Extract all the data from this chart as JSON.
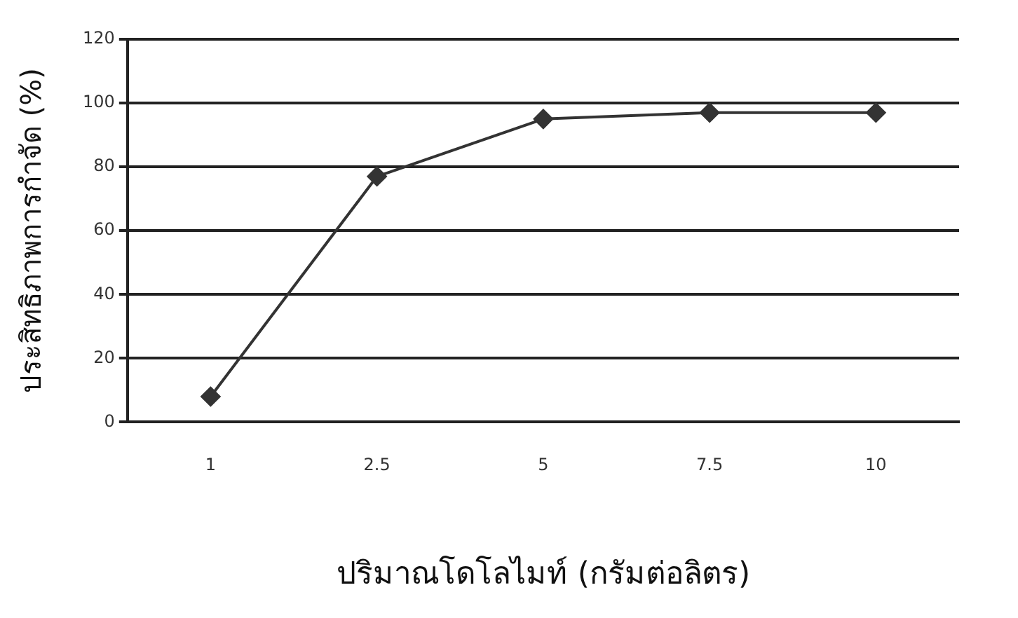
{
  "chart_data": {
    "type": "line",
    "xlabel": "ปริมาณโดโลไมท์ (กรัมต่อลิตร)",
    "ylabel": "ประสิทธิภาพการกำจัด (%)",
    "categories": [
      "1",
      "2.5",
      "5",
      "7.5",
      "10"
    ],
    "series": [
      {
        "color": "#333333",
        "values": [
          8,
          77,
          95,
          97,
          97
        ]
      }
    ],
    "ylim": [
      0,
      120
    ],
    "yticks": [
      0,
      20,
      40,
      60,
      80,
      100,
      120
    ],
    "grid": "y",
    "legend": false,
    "marker": "diamond",
    "line_style": "solid"
  }
}
